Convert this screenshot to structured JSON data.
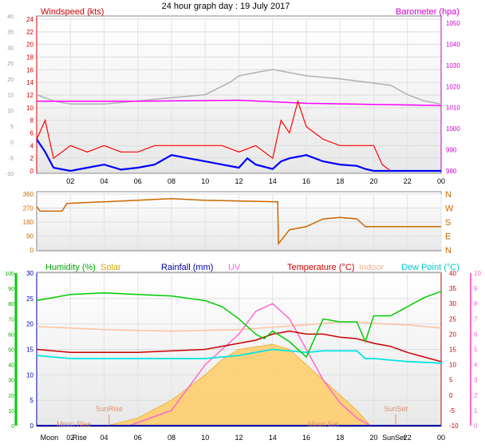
{
  "title": "24 hour graph day : 19 July 2017",
  "chart_data": [
    {
      "type": "line",
      "left_label": "Windspeed (kts)",
      "right_label": "Barometer (hpa)",
      "x_ticks": [
        "02",
        "04",
        "06",
        "08",
        "10",
        "12",
        "14",
        "16",
        "18",
        "20",
        "22",
        "00"
      ],
      "ylim_windspeed": [
        0,
        24
      ],
      "windspeed_ticks": [
        "0",
        "2",
        "4",
        "6",
        "8",
        "10",
        "12",
        "14",
        "16",
        "18",
        "20",
        "22",
        "24"
      ],
      "ylim_outer": [
        -10,
        40
      ],
      "outer_ticks": [
        "-10",
        "-5",
        "0",
        "5",
        "10",
        "15",
        "20",
        "25",
        "30",
        "35",
        "40"
      ],
      "ylim_barometer": [
        980,
        1050
      ],
      "barometer_ticks": [
        "980",
        "990",
        "1000",
        "1010",
        "1020",
        "1030",
        "1040",
        "1050"
      ],
      "colors": {
        "windspeed": "#ff0000",
        "average_wind": "#0000ff",
        "barometer": "#ff00ff",
        "gust_grey": "#b0b0b0"
      },
      "barometer": {
        "x": [
          0,
          6,
          12,
          16,
          20,
          24
        ],
        "y": [
          1013,
          1013,
          1013.5,
          1012,
          1011.5,
          1011
        ]
      },
      "grey_series": {
        "x": [
          0,
          1,
          2,
          4,
          6,
          8,
          10,
          11.5,
          12,
          13,
          14,
          15,
          16,
          18,
          19.5,
          21,
          22,
          23,
          24
        ],
        "y": [
          15,
          13,
          12,
          12,
          13,
          14,
          15,
          19,
          21,
          22,
          23,
          22,
          21,
          20,
          19,
          18,
          15,
          13,
          12
        ]
      },
      "average_wind": {
        "x": [
          0,
          0.5,
          1,
          2,
          3,
          4,
          5,
          6,
          7,
          8,
          9,
          10,
          11,
          12,
          12.5,
          13,
          14,
          14.5,
          15,
          16,
          17,
          18,
          19,
          19.5,
          20,
          22,
          24
        ],
        "y": [
          5,
          3,
          0.5,
          0,
          0.5,
          1,
          0.2,
          0.5,
          1,
          2.5,
          2,
          1.5,
          1,
          0.5,
          2,
          1,
          0.3,
          1.5,
          2,
          2.5,
          1.5,
          1,
          0.8,
          0.3,
          0,
          0,
          0
        ]
      },
      "windspeed": {
        "x": [
          0,
          0.5,
          1,
          2,
          3,
          4,
          5,
          6,
          7,
          8,
          9,
          10,
          11,
          12,
          13,
          14,
          14.5,
          15,
          15.5,
          16,
          17,
          18,
          19,
          20,
          20.5,
          21,
          22,
          24
        ],
        "y": [
          5,
          8,
          2,
          4,
          3,
          4,
          3,
          3,
          4,
          4,
          4,
          4,
          4,
          3,
          4,
          2,
          8,
          6,
          11,
          7,
          5,
          4,
          4,
          4,
          1,
          0,
          0,
          0
        ]
      }
    },
    {
      "type": "line",
      "ylim": [
        0,
        360
      ],
      "y_ticks": [
        "0",
        "90",
        "180",
        "270",
        "360"
      ],
      "compass_ticks": [
        "N",
        "E",
        "S",
        "W",
        "N"
      ],
      "color": "#cc6600",
      "wind_direction": {
        "x": [
          0,
          0.2,
          1.5,
          1.8,
          4,
          8,
          10,
          14.3,
          14.35,
          15,
          16,
          17,
          18,
          19,
          19.5,
          20,
          24
        ],
        "y": [
          280,
          250,
          250,
          300,
          310,
          330,
          320,
          310,
          40,
          130,
          150,
          200,
          210,
          200,
          150,
          150,
          150
        ]
      }
    },
    {
      "type": "area",
      "labels": {
        "humidity": "Humidity (%)",
        "solar": "Solar",
        "rainfall": "Rainfall (mm)",
        "uv": "UV",
        "temperature": "Temperature (°C)",
        "indoor": "Indoor",
        "dew_point": "Dew Point (°C)"
      },
      "x_ticks": [
        "Moon",
        "02",
        "Rise",
        "04",
        "06",
        "08",
        "10",
        "12",
        "14",
        "16",
        "18",
        "20",
        "SunSet",
        "22",
        "00"
      ],
      "ylim_humidity": [
        0,
        100
      ],
      "humidity_ticks": [
        "0",
        "10",
        "20",
        "30",
        "40",
        "50",
        "60",
        "70",
        "80",
        "90",
        "100"
      ],
      "ylim_rainfall": [
        0,
        30
      ],
      "rainfall_ticks": [
        "0",
        "5",
        "10",
        "15",
        "20",
        "25",
        "30"
      ],
      "ylim_temperature": [
        -10,
        40
      ],
      "temperature_ticks": [
        "-10",
        "-5",
        "0",
        "5",
        "10",
        "15",
        "20",
        "25",
        "30",
        "35",
        "40"
      ],
      "ylim_uv": [
        0,
        10
      ],
      "uv_ticks": [
        "0",
        "1",
        "2",
        "3",
        "4",
        "5",
        "6",
        "7",
        "8",
        "9",
        "10"
      ],
      "annotations": [
        "SunRise",
        "Moon Rise",
        "SunSet",
        "Moon Set"
      ],
      "colors": {
        "humidity": "#00cc00",
        "solar": "#ffcc66",
        "rainfall": "#0000aa",
        "uv": "#ff66cc",
        "temperature": "#cc0000",
        "indoor": "#ffc0a0",
        "dew_point": "#00e5e5"
      },
      "humidity": {
        "x": [
          0,
          2,
          4,
          6,
          8,
          10,
          11,
          12,
          13,
          13.5,
          14,
          15,
          16,
          17,
          18,
          19,
          19.5,
          20,
          21,
          22,
          23,
          24
        ],
        "y": [
          82,
          86,
          87,
          86,
          85,
          82,
          78,
          70,
          60,
          57,
          62,
          55,
          45,
          70,
          68,
          68,
          55,
          72,
          72,
          78,
          84,
          88
        ]
      },
      "temperature": {
        "x": [
          0,
          2,
          4,
          6,
          8,
          10,
          12,
          13,
          14,
          15,
          16,
          17,
          18,
          19,
          20,
          21,
          22,
          23,
          24
        ],
        "y": [
          15,
          14,
          14,
          14,
          14.5,
          15,
          17,
          18,
          20,
          21,
          20,
          20,
          19,
          18.5,
          17,
          16,
          14,
          12.5,
          11
        ]
      },
      "dew_point": {
        "x": [
          0,
          2,
          4,
          6,
          8,
          10,
          12,
          13,
          14,
          15,
          16,
          17,
          18,
          19,
          19.5,
          20,
          22,
          24
        ],
        "y": [
          13,
          12,
          12,
          12,
          12,
          12,
          13,
          14,
          15,
          14.5,
          14,
          14.5,
          14.5,
          14.5,
          12,
          12,
          11,
          10.5
        ]
      },
      "indoor": {
        "x": [
          0,
          4,
          8,
          12,
          16,
          18,
          19,
          20,
          22,
          24
        ],
        "y": [
          22.5,
          21.5,
          21,
          21.5,
          23,
          24,
          24,
          23.5,
          23,
          22
        ]
      },
      "solar": {
        "x": [
          4.2,
          6,
          8,
          10,
          11,
          12,
          13,
          14,
          15,
          16,
          17,
          18,
          19,
          19.8
        ],
        "y": [
          0,
          1.5,
          5,
          10,
          13,
          15,
          15.5,
          16,
          15,
          12,
          9,
          6,
          3,
          0
        ]
      },
      "uv": {
        "x": [
          5.5,
          8,
          10,
          12,
          13,
          14,
          15,
          16,
          17,
          18,
          19,
          19.8
        ],
        "y": [
          0,
          1,
          4,
          6,
          7.5,
          8,
          7,
          5,
          3,
          1.5,
          0.5,
          0
        ]
      },
      "rainfall": {
        "x": [
          0,
          24
        ],
        "y": [
          0,
          0
        ]
      }
    }
  ]
}
